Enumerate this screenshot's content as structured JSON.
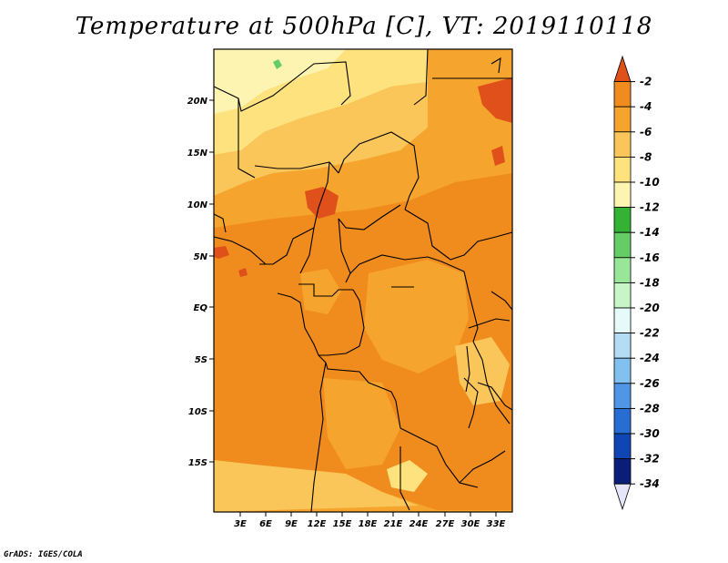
{
  "title": "Temperature at 500hPa [C], VT: 2019110118",
  "credit": "GrADS: IGES/COLA",
  "map": {
    "lat_labels": [
      "20N",
      "15N",
      "10N",
      "5N",
      "EQ",
      "5S",
      "10S",
      "15S"
    ],
    "lon_labels": [
      "3E",
      "6E",
      "9E",
      "12E",
      "15E",
      "18E",
      "21E",
      "24E",
      "27E",
      "30E",
      "33E"
    ]
  },
  "colorbar": {
    "labels": [
      "-2",
      "-4",
      "-6",
      "-8",
      "-10",
      "-12",
      "-14",
      "-16",
      "-18",
      "-20",
      "-22",
      "-24",
      "-26",
      "-28",
      "-30",
      "-32",
      "-34"
    ],
    "colors": [
      "#e0501a",
      "#f08c1e",
      "#f5a52e",
      "#fac65a",
      "#fde27e",
      "#fef4b2",
      "#33b233",
      "#66cc66",
      "#99e699",
      "#c8f5c8",
      "#e6fafa",
      "#b4dcf5",
      "#82c0f0",
      "#5096e6",
      "#286ed2",
      "#0f46b4",
      "#0a1e78",
      "#e6e6fa"
    ]
  }
}
